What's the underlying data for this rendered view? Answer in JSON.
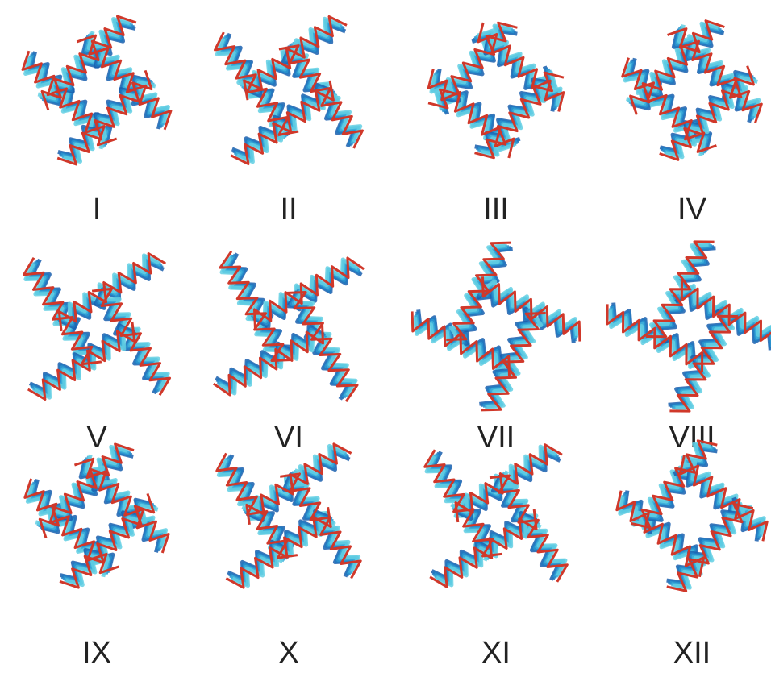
{
  "panels": [
    {
      "label": "I"
    },
    {
      "label": "II"
    },
    {
      "label": "III"
    },
    {
      "label": "IV"
    },
    {
      "label": "V"
    },
    {
      "label": "VI"
    },
    {
      "label": "VII"
    },
    {
      "label": "VIII"
    },
    {
      "label": "IX"
    },
    {
      "label": "X"
    },
    {
      "label": "XI"
    },
    {
      "label": "XII"
    }
  ]
}
